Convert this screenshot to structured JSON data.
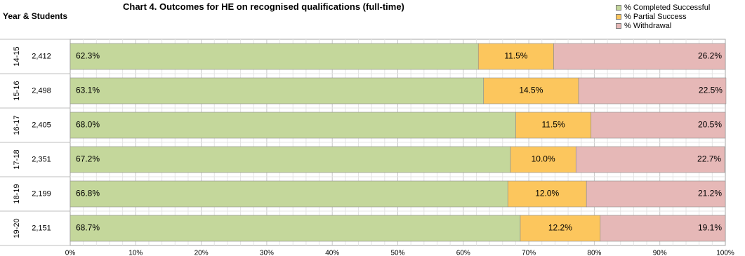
{
  "chart_data": {
    "type": "bar",
    "orientation": "horizontal",
    "stacked": true,
    "title": "Chart 4. Outcomes for HE on recognised qualifications (full-time)",
    "category_axis_label": "Year & Students",
    "categories": [
      "14-15",
      "15-16",
      "16-17",
      "17-18",
      "18-19",
      "19-20"
    ],
    "students": [
      "2,412",
      "2,498",
      "2,405",
      "2,351",
      "2,199",
      "2,151"
    ],
    "series": [
      {
        "name": "% Completed Successful",
        "color": "#c4d79b",
        "values": [
          62.3,
          63.1,
          68.0,
          67.2,
          66.8,
          68.7
        ]
      },
      {
        "name": "% Partial Success",
        "color": "#fcc65d",
        "values": [
          11.5,
          14.5,
          11.5,
          10.0,
          12.0,
          12.2
        ]
      },
      {
        "name": "% Withdrawal",
        "color": "#e6b8b7",
        "values": [
          26.2,
          22.5,
          20.5,
          22.7,
          21.2,
          19.1
        ]
      }
    ],
    "x_ticks": [
      "0%",
      "10%",
      "20%",
      "30%",
      "40%",
      "50%",
      "60%",
      "70%",
      "80%",
      "90%",
      "100%"
    ],
    "xlim": [
      0,
      100
    ],
    "grid": true,
    "legend_position": "top-right"
  }
}
